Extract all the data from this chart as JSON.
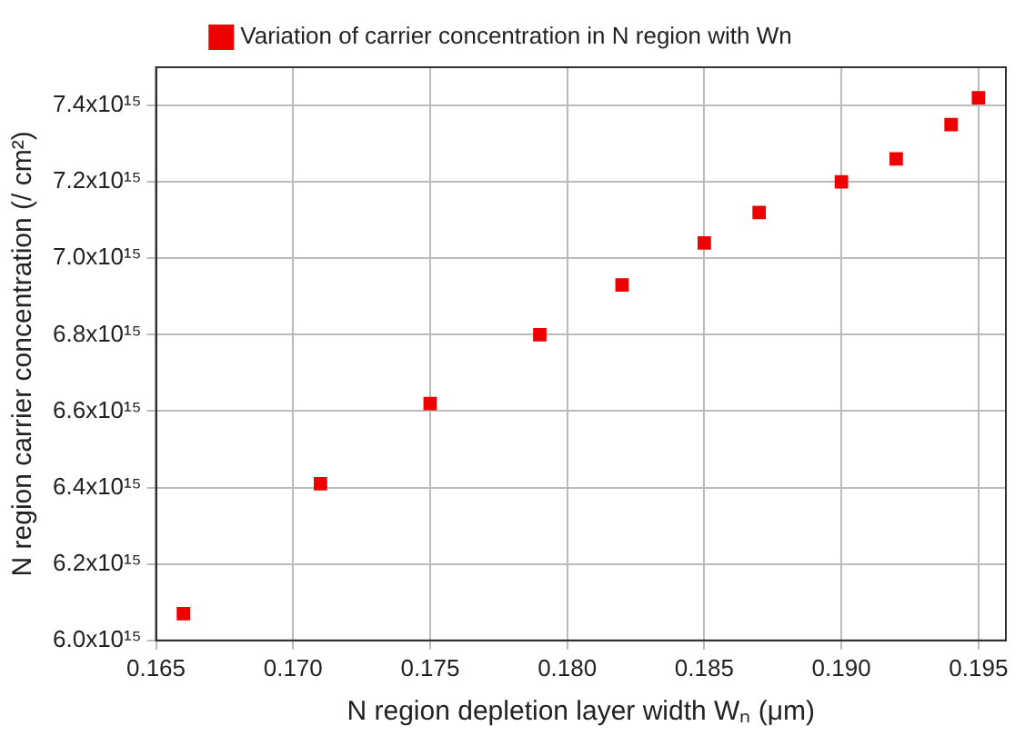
{
  "chart_data": {
    "type": "scatter",
    "xlabel": "N region depletion layer width Wₙ (μm)",
    "ylabel": "N region carrier concentration (/ cm²)",
    "x": [
      0.166,
      0.171,
      0.175,
      0.179,
      0.182,
      0.185,
      0.187,
      0.19,
      0.192,
      0.194,
      0.195
    ],
    "series": [
      {
        "name": "Variation of carrier concentration in N region with Wn",
        "color": "#ee0000",
        "values": [
          6070000000000000.0,
          6410000000000000.0,
          6620000000000000.0,
          6800000000000000.0,
          6930000000000000.0,
          7040000000000000.0,
          7120000000000000.0,
          7200000000000000.0,
          7260000000000000.0,
          7350000000000000.0,
          7420000000000000.0
        ]
      }
    ],
    "xlim": [
      0.165,
      0.196
    ],
    "xticks": [
      0.165,
      {
        "value": 0.17,
        "label": "0.170"
      },
      0.175,
      {
        "value": 0.18,
        "label": "0.180"
      },
      0.185,
      {
        "value": 0.19,
        "label": "0.190"
      },
      0.195
    ],
    "ylim": [
      6000000000000000.0,
      7500000000000000.0
    ],
    "yticks": [
      {
        "value": 6000000000000000.0,
        "label": "6.0x10¹⁵"
      },
      {
        "value": 6200000000000000.0,
        "label": "6.2x10¹⁵"
      },
      {
        "value": 6400000000000000.0,
        "label": "6.4x10¹⁵"
      },
      {
        "value": 6600000000000000.0,
        "label": "6.6x10¹⁵"
      },
      {
        "value": 6800000000000000.0,
        "label": "6.8x10¹⁵"
      },
      {
        "value": 7000000000000000.0,
        "label": "7.0x10¹⁵"
      },
      {
        "value": 7200000000000000.0,
        "label": "7.2x10¹⁵"
      },
      {
        "value": 7400000000000000.0,
        "label": "7.4x10¹⁵"
      }
    ],
    "grid": true,
    "legend": "top",
    "marker": "square"
  }
}
